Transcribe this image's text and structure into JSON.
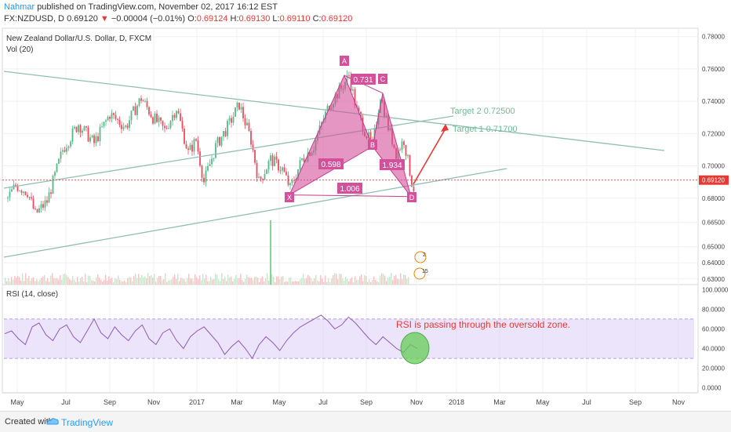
{
  "header": {
    "author": "Nahmar",
    "published": "published on TradingView.com, November 02, 2017 16:12 EST",
    "symbol": "FX:NZDUSD, D",
    "last": "0.69120",
    "arrow": "▼",
    "change": "−0.00004 (−0.01%)",
    "open_label": "O:",
    "open": "0.69124",
    "high_label": "H:",
    "high": "0.69130",
    "low_label": "L:",
    "low": "0.69110",
    "close_label": "C:",
    "close": "0.69120"
  },
  "chart_data": [
    {
      "type": "candlestick",
      "title": "New Zealand Dollar/U.S. Dollar, D, FXCM",
      "indicator_label": "Vol (20)",
      "ylim": [
        0.6265,
        0.7852
      ],
      "y_ticks": [
        "0.78000",
        "0.76000",
        "0.74000",
        "0.72000",
        "0.70000",
        "0.68000",
        "0.66500",
        "0.65000",
        "0.64000",
        "0.63000"
      ],
      "current_price_label": "0.69120",
      "x_ticks": [
        "May",
        "Jul",
        "Sep",
        "Nov",
        "2017",
        "Mar",
        "May",
        "Jul",
        "Sep",
        "Nov",
        "2018",
        "Mar",
        "May",
        "Jul",
        "Sep",
        "Nov"
      ],
      "price_path": [
        [
          0,
          0.68
        ],
        [
          2,
          0.688
        ],
        [
          5,
          0.684
        ],
        [
          7,
          0.67
        ],
        [
          10,
          0.678
        ],
        [
          14,
          0.71
        ],
        [
          18,
          0.726
        ],
        [
          22,
          0.714
        ],
        [
          26,
          0.732
        ],
        [
          30,
          0.724
        ],
        [
          34,
          0.742
        ],
        [
          37,
          0.73
        ],
        [
          40,
          0.722
        ],
        [
          43,
          0.736
        ],
        [
          46,
          0.708
        ],
        [
          48,
          0.716
        ],
        [
          50,
          0.69
        ],
        [
          53,
          0.712
        ],
        [
          56,
          0.724
        ],
        [
          59,
          0.738
        ],
        [
          62,
          0.716
        ],
        [
          64,
          0.69
        ],
        [
          67,
          0.704
        ],
        [
          70,
          0.698
        ],
        [
          72,
          0.686
        ],
        [
          75,
          0.704
        ],
        [
          78,
          0.712
        ],
        [
          80,
          0.726
        ],
        [
          82,
          0.738
        ],
        [
          85,
          0.748
        ],
        [
          87,
          0.756
        ],
        [
          89,
          0.734
        ],
        [
          91,
          0.722
        ],
        [
          93,
          0.712
        ],
        [
          95,
          0.744
        ],
        [
          97,
          0.724
        ],
        [
          99,
          0.708
        ],
        [
          101,
          0.716
        ],
        [
          103,
          0.69
        ],
        [
          104,
          0.682
        ]
      ],
      "harmonic_pattern": {
        "points": {
          "X": 0.682,
          "A": 0.756,
          "B": 0.712,
          "C": 0.745,
          "D": 0.681
        },
        "ratios": [
          "0.731",
          "0.598",
          "1.934",
          "1.006"
        ]
      },
      "targets": [
        {
          "label": "Target 2  0.72500",
          "value": 0.725
        },
        {
          "label": "Target 1  0.71700",
          "value": 0.717
        }
      ],
      "volume_badges": [
        "2",
        "15"
      ]
    },
    {
      "type": "line",
      "title": "RSI (14, close)",
      "ylim": [
        -5,
        105
      ],
      "y_ticks": [
        "100.0000",
        "80.0000",
        "60.0000",
        "40.0000",
        "20.0000",
        "0.0000"
      ],
      "band": [
        30,
        70
      ],
      "annotation": "RSI is passing through the oversold zone.",
      "values": [
        55,
        58,
        50,
        44,
        62,
        66,
        54,
        48,
        60,
        64,
        52,
        46,
        58,
        70,
        56,
        50,
        62,
        54,
        48,
        58,
        64,
        50,
        44,
        56,
        60,
        48,
        40,
        52,
        58,
        62,
        54,
        46,
        34,
        42,
        48,
        40,
        30,
        44,
        52,
        46,
        38,
        48,
        56,
        62,
        66,
        70,
        74,
        68,
        60,
        64,
        72,
        66,
        58,
        50,
        44,
        52,
        46,
        40,
        36,
        44,
        40
      ]
    }
  ]
}
